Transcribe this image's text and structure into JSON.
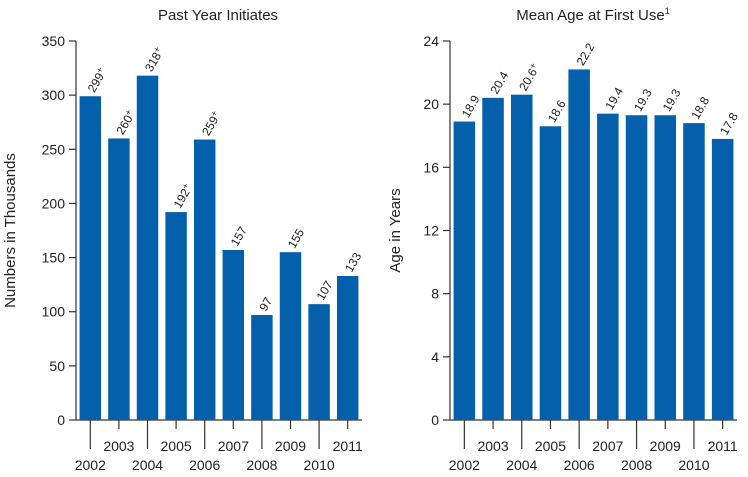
{
  "colors": {
    "bar": "#0560AC",
    "axis": "#333333",
    "text": "#222222"
  },
  "chart_data": [
    {
      "type": "bar",
      "title": "Past Year Initiates",
      "title_superscript": "",
      "ylabel": "Numbers in Thousands",
      "xlabel": "",
      "categories": [
        "2002",
        "2003",
        "2004",
        "2005",
        "2006",
        "2007",
        "2008",
        "2009",
        "2010",
        "2011"
      ],
      "values": [
        299,
        260,
        318,
        192,
        259,
        157,
        97,
        155,
        107,
        133
      ],
      "data_labels": [
        "299",
        "260",
        "318",
        "192",
        "259",
        "157",
        "97",
        "155",
        "107",
        "133"
      ],
      "label_marks": [
        "+",
        "+",
        "+",
        "+",
        "+",
        "",
        "",
        "",
        "",
        ""
      ],
      "ylim": [
        0,
        350
      ],
      "yticks": [
        0,
        50,
        100,
        150,
        200,
        250,
        300,
        350
      ],
      "grid": false,
      "legend": "none"
    },
    {
      "type": "bar",
      "title": "Mean Age at First Use",
      "title_superscript": "1",
      "ylabel": "Age in Years",
      "xlabel": "",
      "categories": [
        "2002",
        "2003",
        "2004",
        "2005",
        "2006",
        "2007",
        "2008",
        "2009",
        "2010",
        "2011"
      ],
      "values": [
        18.9,
        20.4,
        20.6,
        18.6,
        22.2,
        19.4,
        19.3,
        19.3,
        18.8,
        17.8
      ],
      "data_labels": [
        "18.9",
        "20.4",
        "20.6",
        "18.6",
        "22.2",
        "19.4",
        "19.3",
        "19.3",
        "18.8",
        "17.8"
      ],
      "label_marks": [
        "",
        "",
        "+",
        "",
        "",
        "",
        "",
        "",
        "",
        ""
      ],
      "ylim": [
        0,
        24
      ],
      "yticks": [
        0,
        4,
        8,
        12,
        16,
        20,
        24
      ],
      "grid": false,
      "legend": "none"
    }
  ]
}
